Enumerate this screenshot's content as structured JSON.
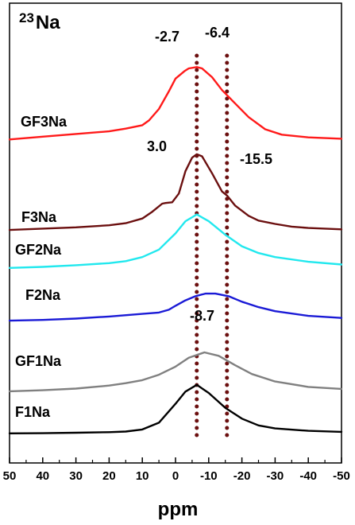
{
  "chart_data": {
    "type": "line",
    "nucleus": {
      "mass": "23",
      "symbol": "Na"
    },
    "xlabel": "ppm",
    "ylabel": "",
    "xlim": [
      50,
      -50
    ],
    "x_reversed": true,
    "xticks": [
      "50",
      "40",
      "30",
      "20",
      "10",
      "0",
      "-10",
      "-20",
      "-30",
      "-40",
      "-50"
    ],
    "grid": false,
    "reference_lines": [
      {
        "x": -6.4,
        "style": "dotted",
        "color": "#6b0f0f"
      },
      {
        "x": -15.5,
        "style": "dotted",
        "color": "#6b0f0f"
      }
    ],
    "annotations": [
      {
        "text": "-2.7",
        "x": -2.7
      },
      {
        "text": "-6.4",
        "x": -6.4
      },
      {
        "text": "3.0",
        "x": 3.0
      },
      {
        "text": "-15.5",
        "x": -15.5
      },
      {
        "text": "-8.7",
        "x": -8.7
      }
    ],
    "series": [
      {
        "name": "F1Na",
        "color": "#000000",
        "baseline": 0,
        "x": [
          50,
          40,
          30,
          20,
          15,
          10,
          5,
          0,
          -3,
          -6.4,
          -10,
          -15,
          -20,
          -25,
          -30,
          -40,
          -50
        ],
        "y": [
          0.2,
          0.5,
          1.2,
          2.0,
          3.0,
          6,
          16,
          44,
          62,
          72,
          60,
          38,
          22,
          12,
          7.5,
          4,
          2.5
        ]
      },
      {
        "name": "GF1Na",
        "color": "#808080",
        "baseline": 62,
        "x": [
          50,
          40,
          30,
          20,
          15,
          10,
          5,
          0,
          -4,
          -8.7,
          -13,
          -18,
          -23,
          -30,
          -40,
          -50
        ],
        "y": [
          0.5,
          2,
          4.5,
          9,
          12.5,
          17,
          25,
          37,
          50,
          58,
          53,
          39,
          26,
          15,
          7,
          4
        ]
      },
      {
        "name": "F2Na",
        "color": "#1a1ad6",
        "baseline": 167,
        "x": [
          50,
          40,
          30,
          20,
          10,
          5,
          2,
          0,
          -3,
          -6,
          -9,
          -12,
          -16,
          -20,
          -25,
          -30,
          -40,
          -50
        ],
        "y": [
          0,
          1,
          3,
          6,
          10,
          12,
          16,
          22,
          30,
          36,
          40,
          40,
          36,
          28,
          20,
          14,
          7,
          4
        ]
      },
      {
        "name": "GF2Na",
        "color": "#22e8ee",
        "baseline": 244,
        "x": [
          50,
          40,
          30,
          20,
          15,
          10,
          5,
          0,
          -3,
          -6.4,
          -10,
          -15,
          -20,
          -25,
          -30,
          -40,
          -50
        ],
        "y": [
          1,
          2.5,
          5,
          8,
          11,
          17,
          28,
          52,
          70,
          80,
          70,
          50,
          33,
          23,
          17,
          10,
          6
        ]
      },
      {
        "name": "F3Na",
        "color": "#6b0f0f",
        "baseline": 300,
        "x": [
          50,
          40,
          30,
          20,
          15,
          10,
          7,
          4,
          3,
          1,
          -1,
          -3,
          -5,
          -6.4,
          -8,
          -11,
          -14,
          -15.5,
          -18,
          -22,
          -25,
          -30,
          -35,
          -40,
          -50
        ],
        "y": [
          1,
          3,
          5,
          8,
          11,
          18,
          28,
          40,
          41,
          42,
          55,
          88,
          108,
          113,
          110,
          85,
          58,
          52,
          37,
          22,
          15,
          10,
          6,
          4,
          2
        ]
      },
      {
        "name": "GF3Na",
        "color": "#ff1a1a",
        "baseline": 430,
        "x": [
          50,
          40,
          30,
          20,
          15,
          10,
          8,
          5,
          2,
          0,
          -2.7,
          -4,
          -6.4,
          -8,
          -11,
          -14,
          -18,
          -22,
          -27,
          -32,
          -40,
          -50
        ],
        "y": [
          5,
          9,
          13,
          17,
          21,
          26,
          33,
          50,
          76,
          95,
          106,
          110,
          112,
          110,
          97,
          78,
          58,
          38,
          20,
          12,
          8,
          6
        ]
      }
    ]
  }
}
